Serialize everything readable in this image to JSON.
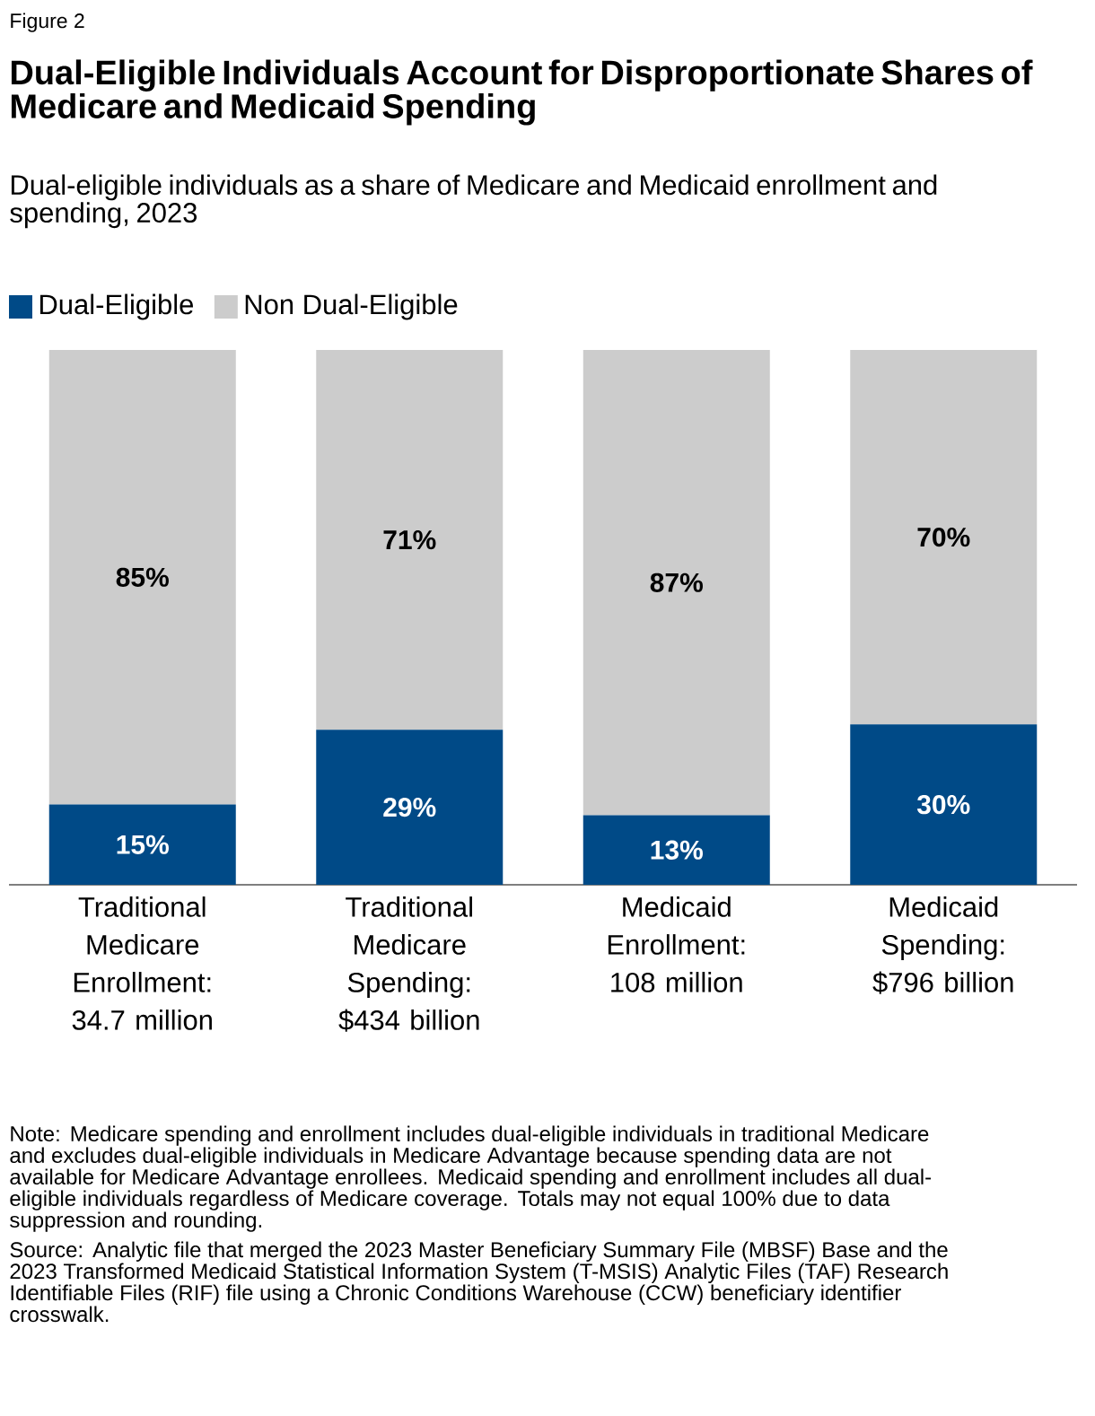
{
  "chart_data": {
    "type": "bar",
    "stacked": true,
    "title": "Dual-Eligible Individuals Account for Disproportionate Shares of Medicare and Medicaid Spending",
    "subtitle": "Dual-eligible individuals as a share of Medicare and Medicaid enrollment and spending, 2023",
    "categories": [
      "Traditional Medicare Enrollment: 34.7 million",
      "Traditional Medicare Spending: $434 billion",
      "Medicaid Enrollment: 108 million",
      "Medicaid Spending: $796 billion"
    ],
    "series": [
      {
        "name": "Dual-Eligible",
        "color": "#004a87",
        "values": [
          15,
          29,
          13,
          30
        ],
        "value_labels": [
          "15%",
          "29%",
          "13%",
          "30%"
        ]
      },
      {
        "name": "Non Dual-Eligible",
        "color": "#cccccc",
        "values": [
          85,
          71,
          87,
          70
        ],
        "value_labels": [
          "85%",
          "71%",
          "87%",
          "70%"
        ]
      }
    ],
    "ylim": [
      0,
      100
    ],
    "tick_labels": "x",
    "legend": "top left",
    "annotations": [
      "Figure 2",
      "Note:  Medicare spending and enrollment includes dual-eligible individuals in traditional Medicare and excludes dual-eligible individuals in Medicare Advantage because spending data are not available for Medicare Advantage enrollees. Medicaid spending and enrollment includes all dual-eligible individuals regardless of Medicare coverage. Totals may not equal 100% due to data suppression and rounding.",
      "Source: Analytic file that merged the 2023 Master Beneficiary Summary File (MBSF) Base and the 2023 Transformed Medicaid Statistical Information System (T-MSIS) Analytic Files (TAF) Research Identifiable Files (RIF) file using a Chronic Conditions Warehouse (CCW) beneficiary identifier crosswalk."
    ]
  }
}
